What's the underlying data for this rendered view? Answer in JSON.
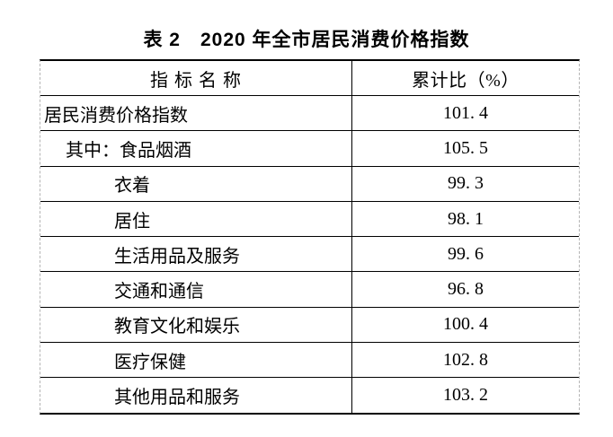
{
  "title": "表 2　2020 年全市居民消费价格指数",
  "table": {
    "columns": [
      "指 标 名 称",
      "累计比（%）"
    ],
    "rows": [
      {
        "label": "居民消费价格指数",
        "value": "101. 4",
        "indent": 0
      },
      {
        "label": "其中：食品烟酒",
        "value": "105. 5",
        "indent": 1
      },
      {
        "label": "衣着",
        "value": "99. 3",
        "indent": 2
      },
      {
        "label": "居住",
        "value": "98. 1",
        "indent": 2
      },
      {
        "label": "生活用品及服务",
        "value": "99. 6",
        "indent": 2
      },
      {
        "label": "交通和通信",
        "value": "96. 8",
        "indent": 2
      },
      {
        "label": "教育文化和娱乐",
        "value": "100. 4",
        "indent": 2
      },
      {
        "label": "医疗保健",
        "value": "102. 8",
        "indent": 2
      },
      {
        "label": "其他用品和服务",
        "value": "103. 2",
        "indent": 2
      }
    ],
    "colors": {
      "text": "#000000",
      "solid_border": "#000000",
      "dashed_gridline": "#b4b4b4",
      "background": "#ffffff"
    }
  },
  "chart_data": {
    "type": "table",
    "title": "表 2　2020 年全市居民消费价格指数",
    "columns": [
      "指标名称",
      "累计比（%）"
    ],
    "rows": [
      [
        "居民消费价格指数",
        101.4
      ],
      [
        "其中：食品烟酒",
        105.5
      ],
      [
        "衣着",
        99.3
      ],
      [
        "居住",
        98.1
      ],
      [
        "生活用品及服务",
        99.6
      ],
      [
        "交通和通信",
        96.8
      ],
      [
        "教育文化和娱乐",
        100.4
      ],
      [
        "医疗保健",
        102.8
      ],
      [
        "其他用品和服务",
        103.2
      ]
    ]
  }
}
